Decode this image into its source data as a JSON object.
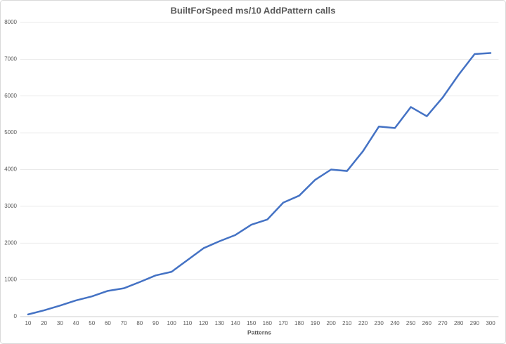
{
  "chart_data": {
    "type": "line",
    "title": "BuiltForSpeed ms/10 AddPattern calls",
    "x_label": "Patterns",
    "categories": [
      "10",
      "20",
      "30",
      "40",
      "50",
      "60",
      "70",
      "80",
      "90",
      "100",
      "110",
      "120",
      "130",
      "140",
      "150",
      "160",
      "170",
      "180",
      "190",
      "200",
      "210",
      "220",
      "230",
      "240",
      "250",
      "260",
      "270",
      "280",
      "290",
      "300"
    ],
    "series": [
      {
        "name": "BuiltForSpeed",
        "color": "#4472c4",
        "values": [
          60,
          170,
          300,
          440,
          550,
          700,
          770,
          940,
          1120,
          1220,
          1540,
          1860,
          2050,
          2220,
          2500,
          2640,
          3100,
          3290,
          3720,
          4000,
          3960,
          4500,
          5170,
          5130,
          5700,
          5450,
          5960,
          6580,
          7140,
          7170
        ]
      }
    ],
    "ylim": [
      0,
      8000
    ],
    "yticks": [
      0,
      1000,
      2000,
      3000,
      4000,
      5000,
      6000,
      7000,
      8000
    ],
    "grid": true
  }
}
